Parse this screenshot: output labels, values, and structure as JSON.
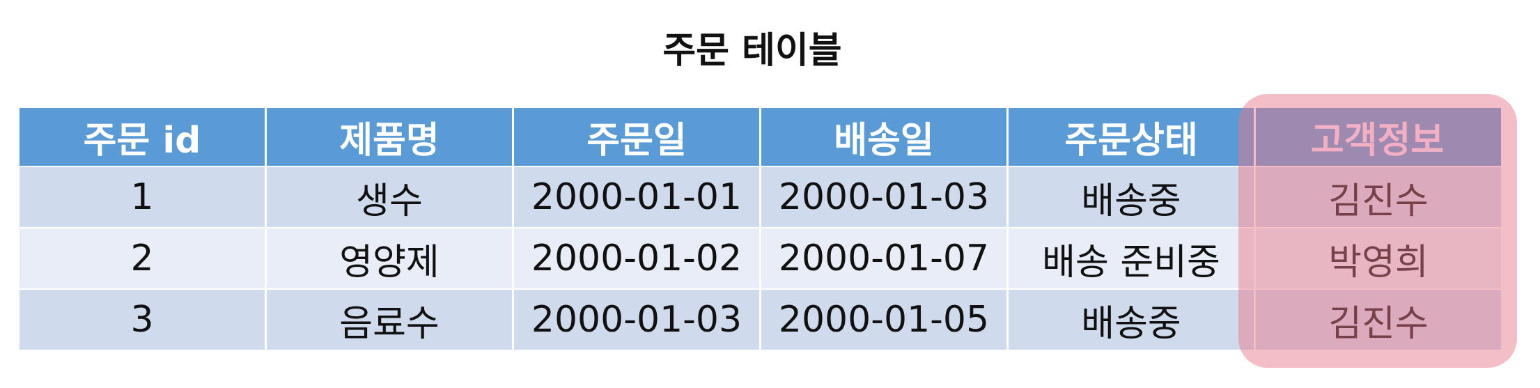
{
  "title": "주문 테이블",
  "table": {
    "headers": [
      "주문 id",
      "제품명",
      "주문일",
      "배송일",
      "주문상태",
      "고객정보"
    ],
    "rows": [
      [
        "1",
        "생수",
        "2000-01-01",
        "2000-01-03",
        "배송중",
        "김진수"
      ],
      [
        "2",
        "영양제",
        "2000-01-02",
        "2000-01-07",
        "배송 준비중",
        "박영희"
      ],
      [
        "3",
        "음료수",
        "2000-01-03",
        "2000-01-05",
        "배송중",
        "김진수"
      ]
    ]
  },
  "colors": {
    "header_bg": "#5b9bd5",
    "row_dark": "#cfdaed",
    "row_light": "#e8edf7",
    "highlight": "#e87887",
    "highlight_header_text": "#f3b0c4"
  }
}
